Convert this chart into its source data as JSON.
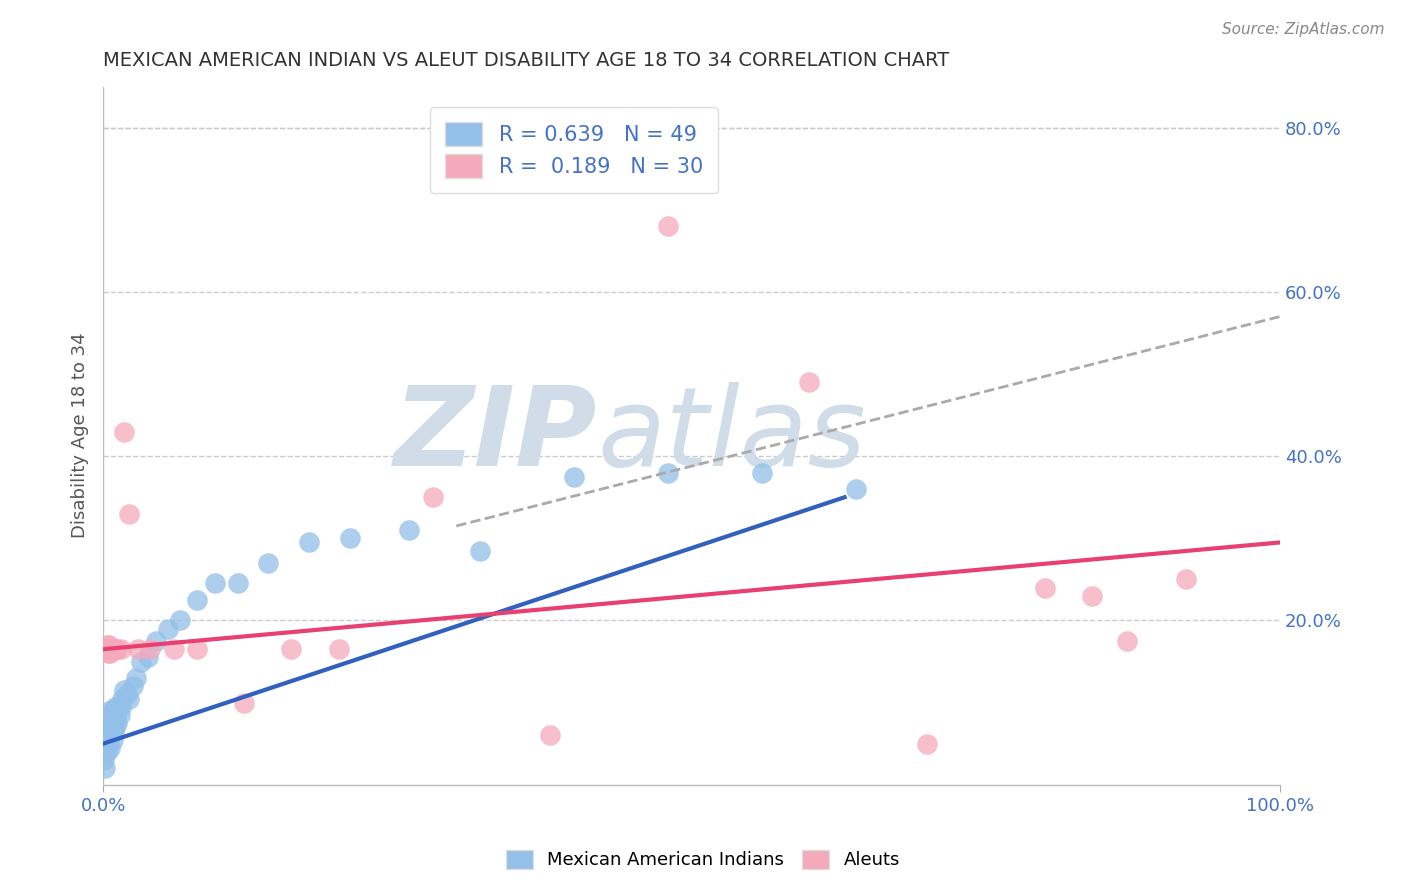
{
  "title": "MEXICAN AMERICAN INDIAN VS ALEUT DISABILITY AGE 18 TO 34 CORRELATION CHART",
  "source": "Source: ZipAtlas.com",
  "ylabel": "Disability Age 18 to 34",
  "xlim": [
    0,
    1.0
  ],
  "ylim": [
    0,
    0.85
  ],
  "legend_r1": "R = 0.639",
  "legend_n1": "N = 49",
  "legend_r2": "R =  0.189",
  "legend_n2": "N = 30",
  "blue_color": "#92C0E8",
  "pink_color": "#F5AABB",
  "blue_line_color": "#3060C0",
  "pink_line_color": "#E84070",
  "dashed_line_color": "#AAAAAA",
  "watermark_zip": "ZIP",
  "watermark_atlas": "atlas",
  "watermark_color": "#D0DDE8",
  "blue_scatter_x": [
    0.001,
    0.002,
    0.002,
    0.003,
    0.003,
    0.004,
    0.004,
    0.005,
    0.005,
    0.005,
    0.006,
    0.006,
    0.007,
    0.007,
    0.008,
    0.008,
    0.008,
    0.009,
    0.009,
    0.01,
    0.01,
    0.011,
    0.012,
    0.013,
    0.014,
    0.015,
    0.016,
    0.018,
    0.02,
    0.022,
    0.025,
    0.028,
    0.032,
    0.038,
    0.045,
    0.055,
    0.065,
    0.08,
    0.095,
    0.115,
    0.14,
    0.175,
    0.21,
    0.26,
    0.32,
    0.4,
    0.48,
    0.56,
    0.64
  ],
  "blue_scatter_y": [
    0.03,
    0.02,
    0.06,
    0.04,
    0.08,
    0.07,
    0.055,
    0.05,
    0.065,
    0.09,
    0.045,
    0.07,
    0.08,
    0.06,
    0.055,
    0.075,
    0.09,
    0.065,
    0.08,
    0.07,
    0.095,
    0.08,
    0.075,
    0.095,
    0.085,
    0.095,
    0.105,
    0.115,
    0.11,
    0.105,
    0.12,
    0.13,
    0.15,
    0.155,
    0.175,
    0.19,
    0.2,
    0.225,
    0.245,
    0.245,
    0.27,
    0.295,
    0.3,
    0.31,
    0.285,
    0.375,
    0.38,
    0.38,
    0.36
  ],
  "pink_scatter_x": [
    0.001,
    0.002,
    0.003,
    0.004,
    0.005,
    0.006,
    0.007,
    0.008,
    0.009,
    0.01,
    0.012,
    0.015,
    0.018,
    0.022,
    0.03,
    0.04,
    0.06,
    0.08,
    0.12,
    0.16,
    0.2,
    0.28,
    0.38,
    0.48,
    0.6,
    0.7,
    0.8,
    0.84,
    0.87,
    0.92
  ],
  "pink_scatter_y": [
    0.165,
    0.165,
    0.17,
    0.16,
    0.17,
    0.16,
    0.165,
    0.165,
    0.165,
    0.165,
    0.165,
    0.165,
    0.43,
    0.33,
    0.165,
    0.165,
    0.165,
    0.165,
    0.1,
    0.165,
    0.165,
    0.35,
    0.06,
    0.68,
    0.49,
    0.05,
    0.24,
    0.23,
    0.175,
    0.25
  ],
  "blue_line_x": [
    0.0,
    0.63
  ],
  "blue_line_y": [
    0.05,
    0.35
  ],
  "pink_line_x": [
    0.0,
    1.0
  ],
  "pink_line_y": [
    0.165,
    0.295
  ],
  "dashed_line_x": [
    0.3,
    1.0
  ],
  "dashed_line_y": [
    0.315,
    0.57
  ]
}
